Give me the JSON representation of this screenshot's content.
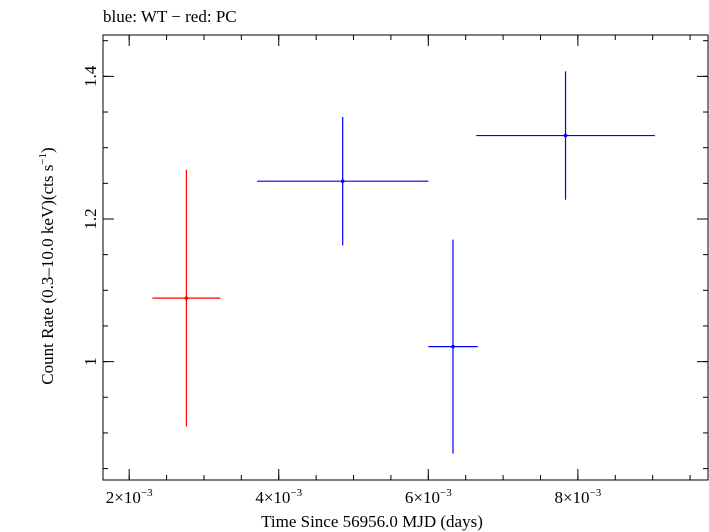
{
  "chart_data": {
    "type": "scatter",
    "title": "blue: WT − red: PC",
    "xlabel": "Time Since 56956.0 MJD (days)",
    "ylabel_main": "Count Rate (0.3–10.0 keV)(cts s",
    "ylabel_sup": "−1",
    "ylabel_end": ")",
    "xlim": [
      0.00165,
      0.00974
    ],
    "ylim": [
      0.834,
      1.458
    ],
    "x_ticks": [
      {
        "value": 0.002,
        "label": "2×10",
        "exp": "−3"
      },
      {
        "value": 0.004,
        "label": "4×10",
        "exp": "−3"
      },
      {
        "value": 0.006,
        "label": "6×10",
        "exp": "−3"
      },
      {
        "value": 0.008,
        "label": "8×10",
        "exp": "−3"
      }
    ],
    "y_ticks": [
      {
        "value": 1.0,
        "label": "1"
      },
      {
        "value": 1.2,
        "label": "1.2"
      },
      {
        "value": 1.4,
        "label": "1.4"
      }
    ],
    "x_minor_step": 0.0005,
    "y_minor_step": 0.05,
    "series": [
      {
        "name": "WT",
        "color": "#0000ff",
        "points": [
          {
            "x": 0.004855,
            "y": 1.253,
            "xerr": 0.001145,
            "yerr": 0.09
          },
          {
            "x": 0.00633,
            "y": 1.021,
            "xerr": 0.00033,
            "yerr": 0.15
          },
          {
            "x": 0.007835,
            "y": 1.317,
            "xerr": 0.001195,
            "yerr": 0.09
          }
        ]
      },
      {
        "name": "PC",
        "color": "#ff0000",
        "points": [
          {
            "x": 0.002765,
            "y": 1.089,
            "xerr": 0.000455,
            "yerr": 0.18
          }
        ]
      }
    ]
  }
}
